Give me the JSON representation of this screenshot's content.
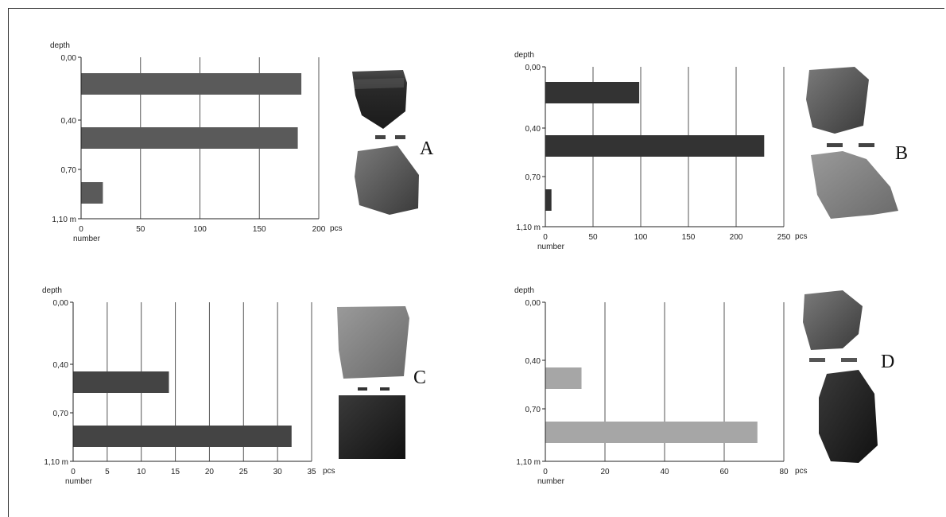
{
  "chart_data": [
    {
      "type": "bar",
      "orientation": "horizontal",
      "letter": "A",
      "depth_label": "depth",
      "number_label": "number",
      "depth_ticks": [
        "0,00",
        "0,40",
        "0,70",
        "1,10 m"
      ],
      "xlim": [
        0,
        200
      ],
      "x_ticks": [
        0,
        50,
        100,
        150,
        200
      ],
      "x_unit": "pcs",
      "values": [
        185,
        182,
        18
      ],
      "value_slots": [
        0,
        1,
        2
      ],
      "bar_color": "#5a5a5a",
      "grid": true
    },
    {
      "type": "bar",
      "orientation": "horizontal",
      "letter": "B",
      "depth_label": "depth",
      "number_label": "number",
      "depth_ticks": [
        "0,00",
        "0,40",
        "0,70",
        "1,10 m"
      ],
      "xlim": [
        0,
        250
      ],
      "x_ticks": [
        0,
        50,
        100,
        150,
        200,
        250
      ],
      "x_unit": "pcs",
      "values": [
        98,
        229,
        6
      ],
      "value_slots": [
        0,
        1,
        2
      ],
      "bar_color": "#333333",
      "grid": true
    },
    {
      "type": "bar",
      "orientation": "horizontal",
      "letter": "C",
      "depth_label": "depth",
      "number_label": "number",
      "depth_ticks": [
        "0,00",
        "0,40",
        "0,70",
        "1,10 m"
      ],
      "xlim": [
        0,
        35
      ],
      "x_ticks": [
        0,
        5,
        10,
        15,
        20,
        25,
        30,
        35
      ],
      "x_unit": "pcs",
      "values": [
        14,
        32
      ],
      "value_slots": [
        1,
        2
      ],
      "bar_color": "#444444",
      "grid": true
    },
    {
      "type": "bar",
      "orientation": "horizontal",
      "letter": "D",
      "depth_label": "depth",
      "number_label": "number",
      "depth_ticks": [
        "0,00",
        "0,40",
        "0,70",
        "1,10 m"
      ],
      "xlim": [
        0,
        80
      ],
      "x_ticks": [
        0,
        20,
        40,
        60,
        80
      ],
      "x_unit": "pcs",
      "values": [
        12,
        71
      ],
      "value_slots": [
        1,
        2
      ],
      "bar_color": "#a6a6a6",
      "grid": true
    }
  ]
}
